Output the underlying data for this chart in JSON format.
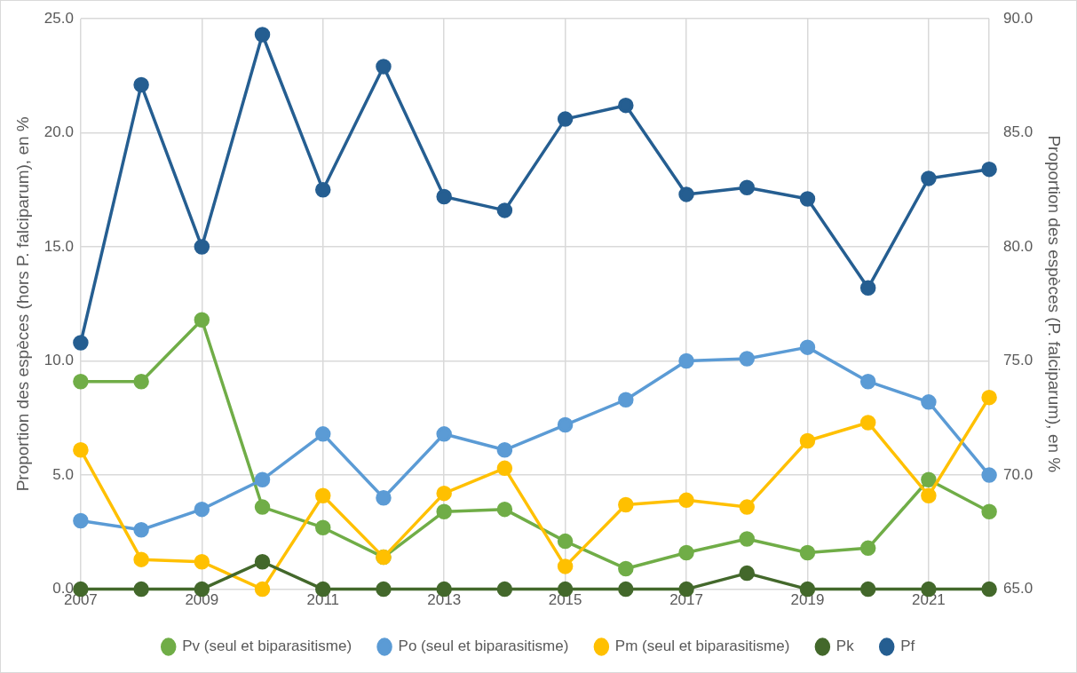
{
  "chart_data": {
    "type": "line",
    "ylabel": "Proportion des espèces (hors P. falciparum), en %",
    "y2label": "Proportion des espèces (P. falciparum), en %",
    "x": [
      2007,
      2008,
      2009,
      2010,
      2011,
      2012,
      2013,
      2014,
      2015,
      2016,
      2017,
      2018,
      2019,
      2020,
      2021,
      2022
    ],
    "xlim": [
      2007,
      2022
    ],
    "xticks": [
      2007,
      2009,
      2011,
      2013,
      2015,
      2017,
      2019,
      2021,
      {
        "value": 2022,
        "label": null
      }
    ],
    "ylim": [
      0,
      25
    ],
    "yticks": [
      {
        "value": 0,
        "label": "0.0"
      },
      {
        "value": 5,
        "label": "5.0"
      },
      {
        "value": 10,
        "label": "10.0"
      },
      {
        "value": 15,
        "label": "15.0"
      },
      {
        "value": 20,
        "label": "20.0"
      },
      {
        "value": 25,
        "label": "25.0"
      }
    ],
    "y2lim": [
      65,
      90
    ],
    "y2ticks": [
      {
        "value": 65,
        "label": "65.0"
      },
      {
        "value": 70,
        "label": "70.0"
      },
      {
        "value": 75,
        "label": "75.0"
      },
      {
        "value": 80,
        "label": "80.0"
      },
      {
        "value": 85,
        "label": "85.0"
      },
      {
        "value": 90,
        "label": "90.0"
      }
    ],
    "series": [
      {
        "name": "Pv (seul et biparasitisme)",
        "color": "#70ad47",
        "values": [
          9.1,
          9.1,
          11.8,
          3.6,
          2.7,
          1.4,
          3.4,
          3.5,
          2.1,
          0.9,
          1.6,
          2.2,
          1.6,
          1.8,
          4.8,
          3.4
        ]
      },
      {
        "name": "Po (seul et biparasitisme)",
        "color": "#5b9bd5",
        "values": [
          3.0,
          2.6,
          3.5,
          4.8,
          6.8,
          4.0,
          6.8,
          6.1,
          7.2,
          8.3,
          10.0,
          10.1,
          10.6,
          9.1,
          8.2,
          5.0
        ]
      },
      {
        "name": "Pm (seul et biparasitisme)",
        "color": "#ffc000",
        "values": [
          6.1,
          1.3,
          1.2,
          0.0,
          4.1,
          1.4,
          4.2,
          5.3,
          1.0,
          3.7,
          3.9,
          3.6,
          6.5,
          7.3,
          4.1,
          8.4
        ]
      },
      {
        "name": "Pk",
        "color": "#43682b",
        "values": [
          0,
          0,
          0,
          1.2,
          0,
          0,
          0,
          0,
          0,
          0,
          0,
          0.7,
          0,
          0,
          0,
          0
        ]
      },
      {
        "name": "Pf",
        "color": "#255e91",
        "axis": "y2",
        "values": [
          75.8,
          87.1,
          80.0,
          89.3,
          82.5,
          87.9,
          82.2,
          81.6,
          85.6,
          86.2,
          82.3,
          82.6,
          82.1,
          78.2,
          83.0,
          83.4
        ]
      }
    ],
    "grid": true,
    "legend": "bottom",
    "marker": "circle",
    "line_style": "solid"
  }
}
